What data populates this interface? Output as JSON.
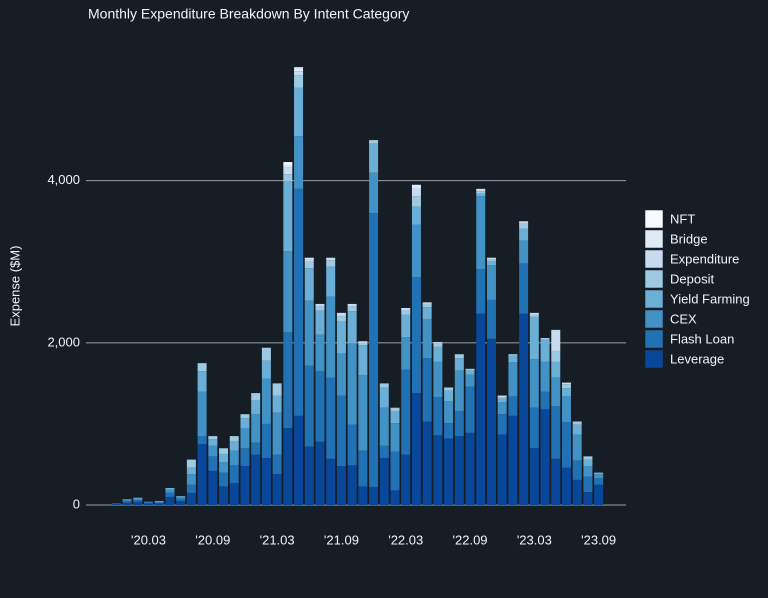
{
  "chart_data": {
    "type": "stacked_bar",
    "title": "Monthly Expenditure Breakdown By Intent Category",
    "y_label": "Expense ($M)",
    "categories": [
      null,
      null,
      null,
      "'20.03",
      null,
      null,
      null,
      null,
      null,
      "'20.09",
      null,
      null,
      null,
      null,
      null,
      "'21.03",
      null,
      null,
      null,
      null,
      null,
      "'21.09",
      null,
      null,
      null,
      null,
      null,
      "'22.03",
      null,
      null,
      null,
      null,
      null,
      "'22.09",
      null,
      null,
      null,
      null,
      null,
      "'23.03",
      null,
      null,
      null,
      null,
      null,
      "'23.09"
    ],
    "ylim": [
      0,
      5600
    ],
    "yticks": [
      0,
      {
        "value": 2000,
        "label": "2,000"
      },
      {
        "value": 4000,
        "label": "4,000"
      }
    ],
    "grid": true,
    "legend": "right",
    "series": [
      {
        "name": "Leverage",
        "color": "#08479a",
        "values": [
          10,
          30,
          40,
          20,
          20,
          100,
          50,
          150,
          750,
          420,
          230,
          270,
          480,
          620,
          580,
          380,
          950,
          1100,
          720,
          780,
          570,
          480,
          490,
          230,
          220,
          580,
          180,
          620,
          1380,
          1030,
          860,
          820,
          850,
          890,
          2360,
          2050,
          870,
          1100,
          2360,
          700,
          1180,
          570,
          460,
          310,
          160,
          250
        ]
      },
      {
        "name": "Flash Loan",
        "color": "#2171b5",
        "values": [
          5,
          20,
          20,
          10,
          10,
          50,
          30,
          100,
          100,
          180,
          170,
          220,
          220,
          150,
          420,
          240,
          1180,
          2800,
          1000,
          870,
          1000,
          870,
          500,
          440,
          3380,
          150,
          480,
          1050,
          1430,
          780,
          470,
          190,
          310,
          570,
          550,
          480,
          250,
          240,
          620,
          500,
          220,
          650,
          560,
          240,
          190,
          80
        ]
      },
      {
        "name": "CEX",
        "color": "#4292c6",
        "values": [
          5,
          10,
          20,
          10,
          10,
          40,
          20,
          130,
          550,
          130,
          130,
          180,
          250,
          350,
          560,
          520,
          1000,
          650,
          800,
          450,
          1000,
          520,
          1000,
          930,
          500,
          470,
          350,
          400,
          650,
          480,
          440,
          270,
          500,
          150,
          900,
          430,
          150,
          420,
          280,
          600,
          370,
          350,
          320,
          320,
          130,
          50
        ]
      },
      {
        "name": "Yield Farming",
        "color": "#6baed6",
        "values": [
          0,
          10,
          10,
          0,
          10,
          20,
          10,
          80,
          250,
          80,
          100,
          120,
          120,
          170,
          220,
          210,
          870,
          600,
          400,
          300,
          370,
          400,
          400,
          370,
          360,
          250,
          150,
          280,
          220,
          150,
          180,
          130,
          150,
          50,
          30,
          50,
          40,
          80,
          150,
          520,
          270,
          200,
          100,
          120,
          80,
          20
        ]
      },
      {
        "name": "Deposit",
        "color": "#9ecae1",
        "values": [
          0,
          0,
          0,
          0,
          0,
          0,
          0,
          100,
          100,
          40,
          70,
          60,
          50,
          90,
          160,
          150,
          80,
          150,
          80,
          50,
          80,
          60,
          60,
          30,
          30,
          50,
          40,
          50,
          130,
          40,
          40,
          40,
          50,
          20,
          30,
          20,
          20,
          20,
          60,
          30,
          20,
          130,
          50,
          40,
          40,
          0
        ]
      },
      {
        "name": "Expenditure",
        "color": "#c6dbef",
        "values": [
          0,
          0,
          0,
          0,
          0,
          0,
          0,
          0,
          0,
          0,
          0,
          0,
          0,
          0,
          0,
          0,
          80,
          50,
          30,
          30,
          30,
          40,
          30,
          20,
          10,
          0,
          0,
          30,
          100,
          20,
          20,
          0,
          0,
          0,
          30,
          20,
          20,
          0,
          30,
          20,
          0,
          260,
          20,
          0,
          0,
          0
        ]
      },
      {
        "name": "Bridge",
        "color": "#deebf7",
        "values": [
          0,
          0,
          0,
          0,
          0,
          0,
          0,
          0,
          0,
          0,
          0,
          0,
          0,
          0,
          0,
          0,
          40,
          30,
          20,
          0,
          0,
          0,
          0,
          0,
          0,
          0,
          0,
          0,
          40,
          0,
          0,
          0,
          0,
          0,
          0,
          0,
          0,
          0,
          0,
          0,
          0,
          0,
          0,
          0,
          0,
          0
        ]
      },
      {
        "name": "NFT",
        "color": "#f7fbff",
        "values": [
          0,
          0,
          0,
          0,
          0,
          0,
          0,
          0,
          0,
          0,
          0,
          0,
          0,
          0,
          0,
          0,
          30,
          20,
          0,
          0,
          0,
          0,
          0,
          0,
          0,
          0,
          0,
          0,
          0,
          0,
          0,
          0,
          0,
          0,
          0,
          0,
          0,
          0,
          0,
          0,
          0,
          0,
          0,
          0,
          0,
          0
        ]
      }
    ]
  }
}
